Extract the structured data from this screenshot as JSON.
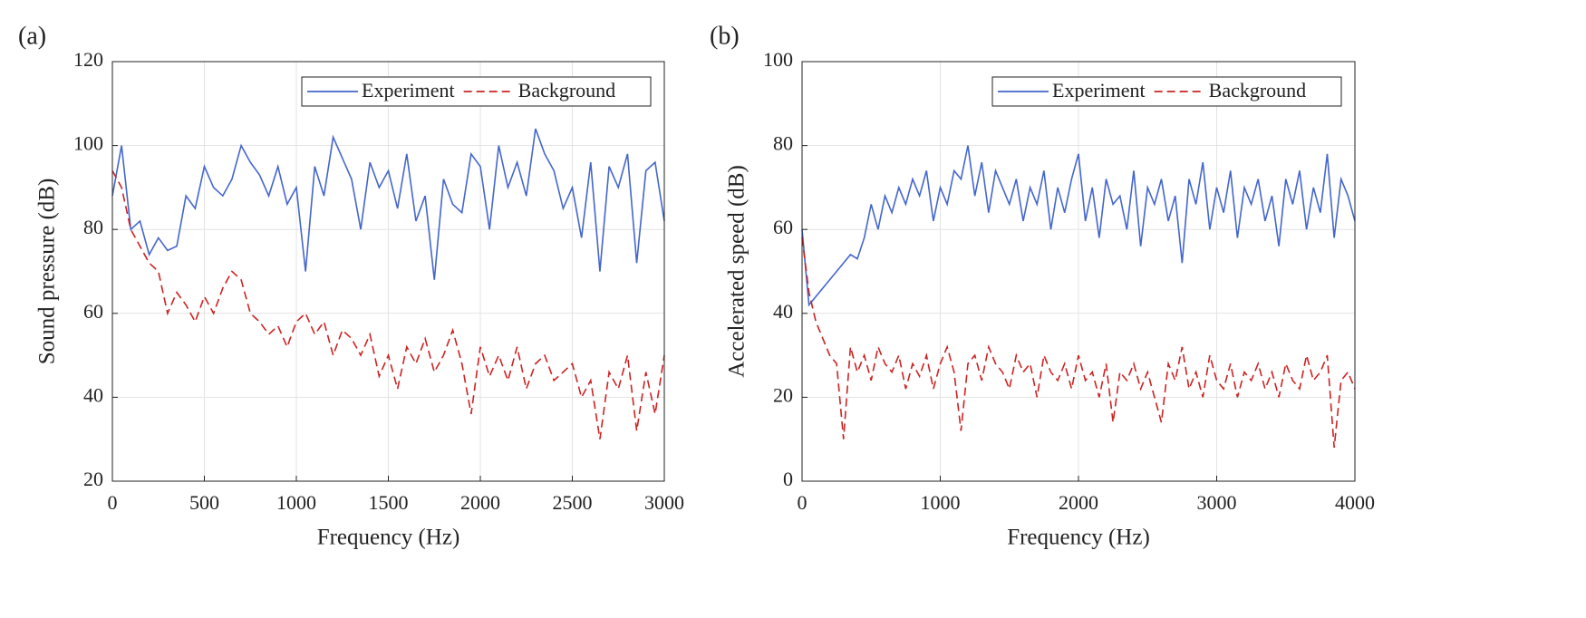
{
  "chart_data": [
    {
      "type": "line",
      "label": "(a)",
      "xlabel": "Frequency (Hz)",
      "ylabel": "Sound pressure (dB)",
      "xlim": [
        0,
        3000
      ],
      "ylim": [
        20,
        120
      ],
      "xticks": [
        0,
        500,
        1000,
        1500,
        2000,
        2500,
        3000
      ],
      "yticks": [
        20,
        40,
        60,
        80,
        100,
        120
      ],
      "grid": true,
      "legend": "upper right",
      "x": [
        0,
        50,
        100,
        150,
        200,
        250,
        300,
        350,
        400,
        450,
        500,
        550,
        600,
        650,
        700,
        750,
        800,
        850,
        900,
        950,
        1000,
        1050,
        1100,
        1150,
        1200,
        1250,
        1300,
        1350,
        1400,
        1450,
        1500,
        1550,
        1600,
        1650,
        1700,
        1750,
        1800,
        1850,
        1900,
        1950,
        2000,
        2050,
        2100,
        2150,
        2200,
        2250,
        2300,
        2350,
        2400,
        2450,
        2500,
        2550,
        2600,
        2650,
        2700,
        2750,
        2800,
        2850,
        2900,
        2950,
        3000
      ],
      "series": [
        {
          "name": "Experiment",
          "color": "#4466cc",
          "linestyle": "solid",
          "values": [
            88,
            100,
            80,
            82,
            74,
            78,
            75,
            76,
            88,
            85,
            95,
            90,
            88,
            92,
            100,
            96,
            93,
            88,
            95,
            86,
            90,
            70,
            95,
            88,
            102,
            97,
            92,
            80,
            96,
            90,
            94,
            85,
            98,
            82,
            88,
            68,
            92,
            86,
            84,
            98,
            95,
            80,
            100,
            90,
            96,
            88,
            104,
            98,
            94,
            85,
            90,
            78,
            96,
            70,
            95,
            90,
            98,
            72,
            94,
            96,
            82
          ]
        },
        {
          "name": "Background",
          "color": "#cc2222",
          "linestyle": "dashed",
          "values": [
            94,
            90,
            80,
            76,
            72,
            70,
            60,
            65,
            62,
            58,
            64,
            60,
            66,
            70,
            68,
            60,
            58,
            55,
            57,
            52,
            58,
            60,
            55,
            58,
            50,
            56,
            54,
            50,
            55,
            45,
            50,
            42,
            52,
            48,
            54,
            46,
            50,
            56,
            48,
            36,
            52,
            45,
            50,
            44,
            52,
            42,
            48,
            50,
            44,
            46,
            48,
            40,
            44,
            30,
            46,
            42,
            50,
            32,
            46,
            36,
            50
          ]
        }
      ]
    },
    {
      "type": "line",
      "label": "(b)",
      "xlabel": "Frequency (Hz)",
      "ylabel": "Accelerated speed (dB)",
      "xlim": [
        0,
        4000
      ],
      "ylim": [
        0,
        100
      ],
      "xticks": [
        0,
        1000,
        2000,
        3000,
        4000
      ],
      "yticks": [
        0,
        20,
        40,
        60,
        80,
        100
      ],
      "grid": true,
      "legend": "upper right",
      "x": [
        0,
        50,
        100,
        150,
        200,
        250,
        300,
        350,
        400,
        450,
        500,
        550,
        600,
        650,
        700,
        750,
        800,
        850,
        900,
        950,
        1000,
        1050,
        1100,
        1150,
        1200,
        1250,
        1300,
        1350,
        1400,
        1450,
        1500,
        1550,
        1600,
        1650,
        1700,
        1750,
        1800,
        1850,
        1900,
        1950,
        2000,
        2050,
        2100,
        2150,
        2200,
        2250,
        2300,
        2350,
        2400,
        2450,
        2500,
        2550,
        2600,
        2650,
        2700,
        2750,
        2800,
        2850,
        2900,
        2950,
        3000,
        3050,
        3100,
        3150,
        3200,
        3250,
        3300,
        3350,
        3400,
        3450,
        3500,
        3550,
        3600,
        3650,
        3700,
        3750,
        3800,
        3850,
        3900,
        3950,
        4000
      ],
      "series": [
        {
          "name": "Experiment",
          "color": "#4466cc",
          "linestyle": "solid",
          "values": [
            60,
            42,
            44,
            46,
            48,
            50,
            52,
            54,
            53,
            58,
            66,
            60,
            68,
            64,
            70,
            66,
            72,
            68,
            74,
            62,
            70,
            66,
            74,
            72,
            80,
            68,
            76,
            64,
            74,
            70,
            66,
            72,
            62,
            70,
            66,
            74,
            60,
            70,
            64,
            72,
            78,
            62,
            70,
            58,
            72,
            66,
            68,
            60,
            74,
            56,
            70,
            66,
            72,
            62,
            68,
            52,
            72,
            66,
            76,
            60,
            70,
            64,
            74,
            58,
            70,
            66,
            72,
            62,
            68,
            56,
            72,
            66,
            74,
            60,
            70,
            64,
            78,
            58,
            72,
            68,
            62
          ]
        },
        {
          "name": "Background",
          "color": "#cc2222",
          "linestyle": "dashed",
          "values": [
            58,
            45,
            38,
            34,
            30,
            28,
            10,
            32,
            26,
            30,
            24,
            32,
            28,
            26,
            30,
            22,
            28,
            25,
            30,
            22,
            28,
            32,
            26,
            12,
            28,
            30,
            24,
            32,
            28,
            26,
            22,
            30,
            26,
            28,
            20,
            30,
            26,
            24,
            28,
            22,
            30,
            24,
            26,
            20,
            28,
            14,
            26,
            24,
            28,
            22,
            26,
            20,
            14,
            28,
            24,
            32,
            22,
            26,
            20,
            30,
            24,
            22,
            28,
            20,
            26,
            24,
            28,
            22,
            26,
            20,
            28,
            24,
            22,
            30,
            24,
            26,
            30,
            8,
            24,
            26,
            22
          ]
        }
      ]
    }
  ]
}
